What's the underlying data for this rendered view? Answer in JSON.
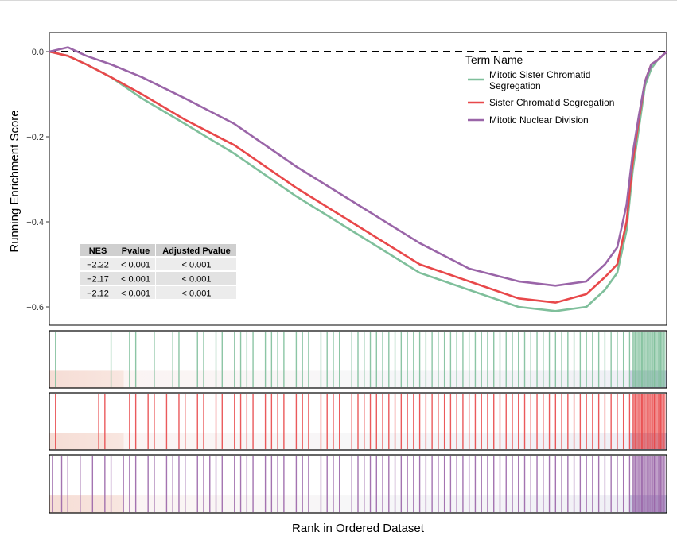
{
  "chart_data": {
    "type": "line",
    "xlabel": "Rank in Ordered Dataset",
    "ylabel": "Running Enrichment Score",
    "ylim": [
      -0.64,
      0.05
    ],
    "xlim": [
      0,
      1
    ],
    "yticks": [
      0.0,
      -0.2,
      -0.4,
      -0.6
    ],
    "ytick_labels": [
      "0.0",
      "−0.2",
      "−0.4",
      "−0.6"
    ],
    "zero_line": "dashed",
    "legend": {
      "title": "Term Name",
      "placement": "top-right"
    },
    "series": [
      {
        "name": "Mitotic Sister Chromatid Segregation",
        "color": "#7fbf9b",
        "x": [
          0,
          0.03,
          0.06,
          0.1,
          0.15,
          0.22,
          0.3,
          0.4,
          0.5,
          0.6,
          0.68,
          0.76,
          0.82,
          0.87,
          0.9,
          0.92,
          0.935,
          0.945,
          0.955,
          0.965,
          0.975,
          0.985,
          1.0
        ],
        "y": [
          0,
          -0.01,
          -0.03,
          -0.06,
          -0.11,
          -0.17,
          -0.24,
          -0.34,
          -0.43,
          -0.52,
          -0.56,
          -0.6,
          -0.61,
          -0.6,
          -0.56,
          -0.52,
          -0.42,
          -0.28,
          -0.18,
          -0.08,
          -0.04,
          -0.02,
          0
        ]
      },
      {
        "name": "Sister Chromatid Segregation",
        "color": "#e8484a",
        "x": [
          0,
          0.03,
          0.06,
          0.1,
          0.15,
          0.22,
          0.3,
          0.4,
          0.5,
          0.6,
          0.68,
          0.76,
          0.82,
          0.87,
          0.9,
          0.92,
          0.935,
          0.945,
          0.955,
          0.965,
          0.975,
          0.985,
          1.0
        ],
        "y": [
          0,
          -0.01,
          -0.03,
          -0.06,
          -0.1,
          -0.16,
          -0.22,
          -0.32,
          -0.41,
          -0.5,
          -0.54,
          -0.58,
          -0.59,
          -0.57,
          -0.53,
          -0.5,
          -0.4,
          -0.26,
          -0.16,
          -0.07,
          -0.03,
          -0.02,
          0
        ]
      },
      {
        "name": "Mitotic Nuclear Division",
        "color": "#9a65a8",
        "x": [
          0,
          0.03,
          0.06,
          0.1,
          0.15,
          0.22,
          0.3,
          0.4,
          0.5,
          0.6,
          0.68,
          0.76,
          0.82,
          0.87,
          0.9,
          0.92,
          0.935,
          0.945,
          0.955,
          0.965,
          0.975,
          0.985,
          1.0
        ],
        "y": [
          0,
          0.01,
          -0.01,
          -0.03,
          -0.06,
          -0.11,
          -0.17,
          -0.27,
          -0.36,
          -0.45,
          -0.51,
          -0.54,
          -0.55,
          -0.54,
          -0.5,
          -0.46,
          -0.36,
          -0.24,
          -0.15,
          -0.07,
          -0.03,
          -0.02,
          0
        ]
      }
    ],
    "gene_hits": [
      [
        0.01,
        0.1,
        0.13,
        0.14,
        0.17,
        0.2,
        0.21,
        0.24,
        0.25,
        0.27,
        0.28,
        0.3,
        0.31,
        0.32,
        0.33,
        0.35,
        0.36,
        0.37,
        0.38,
        0.4,
        0.41,
        0.42,
        0.44,
        0.45,
        0.46,
        0.47,
        0.49,
        0.5,
        0.51,
        0.52,
        0.53,
        0.54,
        0.55,
        0.56,
        0.57,
        0.58,
        0.59,
        0.6,
        0.61,
        0.62,
        0.63,
        0.64,
        0.65,
        0.66,
        0.67,
        0.68,
        0.69,
        0.7,
        0.71,
        0.72,
        0.73,
        0.74,
        0.75,
        0.76,
        0.77,
        0.78,
        0.79,
        0.8,
        0.81,
        0.82,
        0.83,
        0.84,
        0.85,
        0.86,
        0.87,
        0.88,
        0.89,
        0.9,
        0.91,
        0.92,
        0.93,
        0.94,
        0.95,
        0.96,
        0.97,
        0.98,
        0.99
      ],
      [
        0.01,
        0.08,
        0.09,
        0.13,
        0.14,
        0.16,
        0.17,
        0.19,
        0.21,
        0.22,
        0.24,
        0.25,
        0.27,
        0.28,
        0.3,
        0.31,
        0.32,
        0.33,
        0.35,
        0.36,
        0.37,
        0.38,
        0.4,
        0.41,
        0.42,
        0.44,
        0.45,
        0.46,
        0.47,
        0.49,
        0.5,
        0.51,
        0.52,
        0.53,
        0.54,
        0.55,
        0.56,
        0.57,
        0.58,
        0.59,
        0.6,
        0.61,
        0.62,
        0.63,
        0.64,
        0.65,
        0.66,
        0.67,
        0.68,
        0.69,
        0.7,
        0.71,
        0.72,
        0.73,
        0.74,
        0.75,
        0.76,
        0.77,
        0.78,
        0.79,
        0.8,
        0.81,
        0.82,
        0.83,
        0.84,
        0.85,
        0.86,
        0.87,
        0.88,
        0.89,
        0.9,
        0.91,
        0.92,
        0.93,
        0.94,
        0.95,
        0.96,
        0.97,
        0.98,
        0.99
      ],
      [
        0.005,
        0.02,
        0.03,
        0.05,
        0.07,
        0.09,
        0.1,
        0.12,
        0.13,
        0.14,
        0.16,
        0.17,
        0.19,
        0.2,
        0.21,
        0.22,
        0.24,
        0.25,
        0.26,
        0.27,
        0.28,
        0.3,
        0.31,
        0.32,
        0.33,
        0.35,
        0.36,
        0.37,
        0.38,
        0.4,
        0.41,
        0.42,
        0.44,
        0.45,
        0.46,
        0.47,
        0.49,
        0.5,
        0.51,
        0.52,
        0.53,
        0.54,
        0.55,
        0.56,
        0.57,
        0.58,
        0.59,
        0.6,
        0.61,
        0.62,
        0.63,
        0.64,
        0.65,
        0.66,
        0.67,
        0.68,
        0.69,
        0.7,
        0.71,
        0.72,
        0.73,
        0.74,
        0.75,
        0.76,
        0.77,
        0.78,
        0.79,
        0.8,
        0.81,
        0.82,
        0.83,
        0.84,
        0.85,
        0.86,
        0.87,
        0.88,
        0.89,
        0.9,
        0.91,
        0.92,
        0.93,
        0.94,
        0.95,
        0.96,
        0.97,
        0.98,
        0.99
      ]
    ],
    "stats_table": {
      "headers": [
        "NES",
        "Pvalue",
        "Adjusted Pvalue"
      ],
      "rows": [
        [
          "−2.22",
          "< 0.001",
          "< 0.001"
        ],
        [
          "−2.17",
          "< 0.001",
          "< 0.001"
        ],
        [
          "−2.12",
          "< 0.001",
          "< 0.001"
        ]
      ]
    }
  }
}
